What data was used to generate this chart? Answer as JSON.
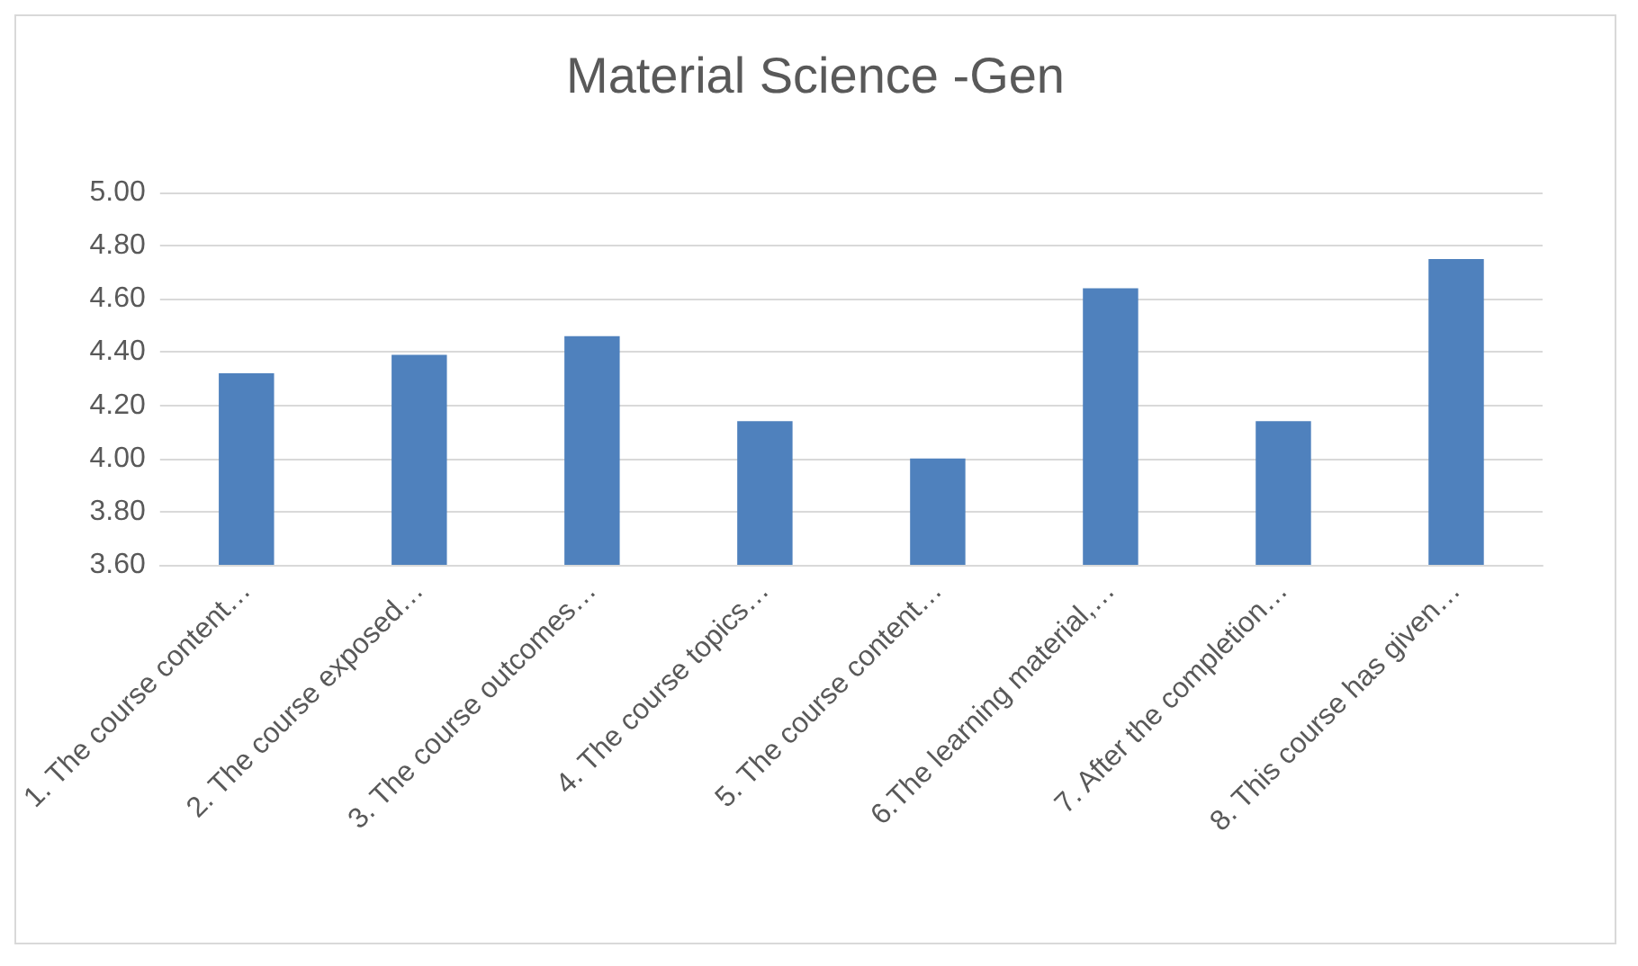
{
  "chart_data": {
    "type": "bar",
    "title": "Material Science -Gen",
    "categories": [
      "1. The course content…",
      "2. The course exposed…",
      "3. The course outcomes…",
      "4. The course topics…",
      "5. The course content…",
      "6.The learning material,…",
      "7. After the completion…",
      "8. This course has given…"
    ],
    "values": [
      4.32,
      4.39,
      4.46,
      4.14,
      4.0,
      4.64,
      4.14,
      4.75
    ],
    "color": "#4f81bd",
    "ylim": [
      3.6,
      5.0
    ],
    "yticks": [
      {
        "value": 3.6,
        "label": "3.60"
      },
      {
        "value": 3.8,
        "label": "3.80"
      },
      {
        "value": 4.0,
        "label": "4.00"
      },
      {
        "value": 4.2,
        "label": "4.20"
      },
      {
        "value": 4.4,
        "label": "4.40"
      },
      {
        "value": 4.6,
        "label": "4.60"
      },
      {
        "value": 4.8,
        "label": "4.80"
      },
      {
        "value": 5.0,
        "label": "5.00"
      }
    ],
    "grid": "y"
  }
}
